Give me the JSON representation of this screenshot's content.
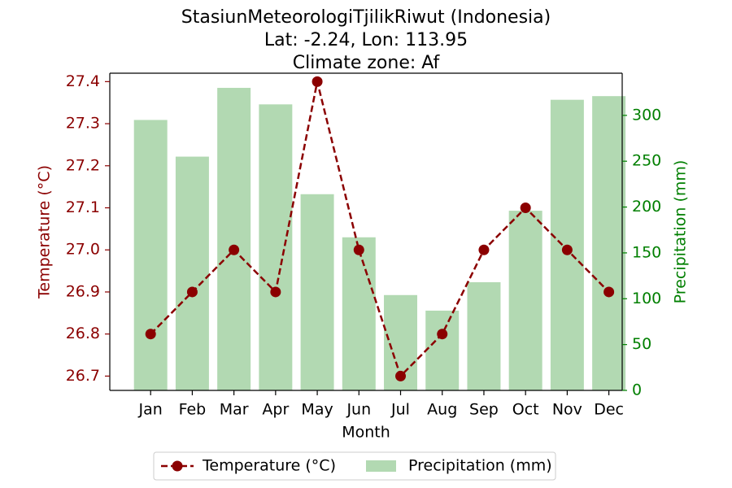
{
  "chart_data": {
    "type": "bar+line",
    "title_lines": [
      "StasiunMeteorologiTjilikRiwut (Indonesia)",
      "Lat: -2.24, Lon: 113.95",
      "Climate zone: Af"
    ],
    "xlabel": "Month",
    "ylabel_left": "Temperature (°C)",
    "ylabel_right": "Precipitation (mm)",
    "categories": [
      "Jan",
      "Feb",
      "Mar",
      "Apr",
      "May",
      "Jun",
      "Jul",
      "Aug",
      "Sep",
      "Oct",
      "Nov",
      "Dec"
    ],
    "series": [
      {
        "name": "Temperature (°C)",
        "type": "line",
        "axis": "left",
        "values": [
          26.8,
          26.9,
          27.0,
          26.9,
          27.4,
          27.0,
          26.7,
          26.8,
          27.0,
          27.1,
          27.0,
          26.9
        ]
      },
      {
        "name": "Precipitation (mm)",
        "type": "bar",
        "axis": "right",
        "values": [
          295,
          255,
          330,
          312,
          214,
          167,
          104,
          87,
          118,
          196,
          317,
          321
        ]
      }
    ],
    "ylim_left": [
      26.666,
      27.42
    ],
    "yticks_left": [
      "26.7",
      "26.8",
      "26.9",
      "27.0",
      "27.1",
      "27.2",
      "27.3",
      "27.4"
    ],
    "ylim_right": [
      0,
      346
    ],
    "yticks_right": [
      "0",
      "50",
      "100",
      "150",
      "200",
      "250",
      "300"
    ],
    "legend_position": "bottom-center",
    "colors": {
      "temperature": "#8b0000",
      "precipitation": "#b2d9b2",
      "right_axis": "#007f00"
    }
  }
}
